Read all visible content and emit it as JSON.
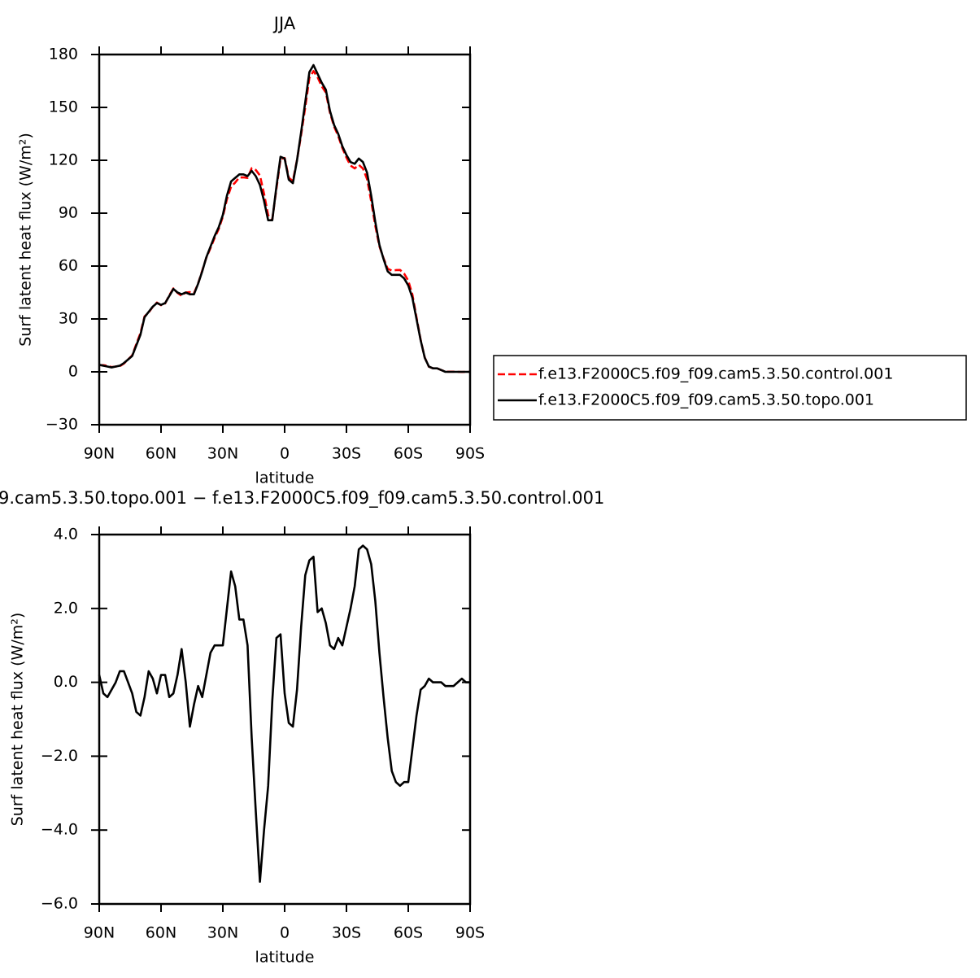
{
  "chart_data": [
    {
      "type": "line",
      "title": "JJA",
      "xlabel": "latitude",
      "ylabel": "Surf latent heat flux (W/m²)",
      "x": [
        90,
        88,
        86,
        84,
        82,
        80,
        78,
        76,
        74,
        72,
        70,
        68,
        66,
        64,
        62,
        60,
        58,
        56,
        54,
        52,
        50,
        48,
        46,
        44,
        42,
        40,
        38,
        36,
        34,
        32,
        30,
        28,
        26,
        24,
        22,
        20,
        18,
        16,
        14,
        12,
        10,
        8,
        6,
        4,
        2,
        0,
        -2,
        -4,
        -6,
        -8,
        -10,
        -12,
        -14,
        -16,
        -18,
        -20,
        -22,
        -24,
        -26,
        -28,
        -30,
        -32,
        -34,
        -36,
        -38,
        -40,
        -42,
        -44,
        -46,
        -48,
        -50,
        -52,
        -54,
        -56,
        -58,
        -60,
        -62,
        -64,
        -66,
        -68,
        -70,
        -72,
        -74,
        -76,
        -78,
        -80,
        -82,
        -84,
        -86,
        -88,
        -90
      ],
      "series": [
        {
          "name": "f.e13.F2000C5.f09_f09.cam5.3.50.control.001",
          "color": "#ff0000",
          "linestyle": "dashed",
          "values": [
            3.8,
            3.8,
            3.4,
            2.7,
            3,
            3.2,
            4.7,
            7,
            9.3,
            15.8,
            21.9,
            31.4,
            33.7,
            36.9,
            39.3,
            37.8,
            38.8,
            43.4,
            47.3,
            44.8,
            43.1,
            45,
            45.2,
            44.6,
            50.1,
            57.4,
            64.8,
            70.2,
            76,
            81,
            88,
            98,
            105,
            107.4,
            110.3,
            110.3,
            110,
            115.5,
            114.5,
            111.4,
            101,
            88.8,
            86.5,
            103.8,
            120.7,
            121.3,
            110.1,
            108.2,
            120.2,
            134.5,
            150.1,
            166.7,
            170.6,
            167.1,
            162,
            158.4,
            147,
            139.1,
            133.8,
            127,
            121.5,
            117,
            115.4,
            117.4,
            115.3,
            109.4,
            96.8,
            82.8,
            71.2,
            64.4,
            58.5,
            57.4,
            57.7,
            57.8,
            55.7,
            51.7,
            43.8,
            30.9,
            18.2,
            8.1,
            2.9,
            2,
            2,
            1,
            0.1,
            0.1,
            0.1,
            0,
            -0.1,
            0,
            0
          ]
        },
        {
          "name": "f.e13.F2000C5.f09_f09.cam5.3.50.topo.001",
          "color": "#000000",
          "linestyle": "solid",
          "values": [
            4,
            3.5,
            3,
            2.5,
            3,
            3.5,
            5,
            7,
            9,
            15,
            21,
            31,
            34,
            37,
            39,
            38,
            39,
            43,
            47,
            45,
            44,
            45,
            44,
            44,
            50,
            57,
            65,
            71,
            77,
            82,
            89,
            100,
            108,
            110,
            112,
            112,
            111,
            114,
            111,
            106,
            97,
            86,
            86,
            105,
            122,
            121,
            109,
            107,
            120,
            136,
            153,
            170,
            174,
            169,
            164,
            160,
            148,
            140,
            135,
            128,
            123,
            119,
            118,
            121,
            119,
            113,
            100,
            85,
            72,
            64,
            57,
            55,
            55,
            55,
            53,
            49,
            42,
            30,
            18,
            8,
            3,
            2,
            2,
            1,
            0,
            0,
            0,
            0,
            0,
            0,
            0
          ]
        }
      ],
      "xlim": [
        90,
        -90
      ],
      "xticks": [
        {
          "value": 90,
          "label": "90N"
        },
        {
          "value": 60,
          "label": "60N"
        },
        {
          "value": 30,
          "label": "30N"
        },
        0,
        {
          "value": -30,
          "label": "30S"
        },
        {
          "value": -60,
          "label": "60S"
        },
        {
          "value": -90,
          "label": "90S"
        }
      ],
      "ylim": [
        -30,
        180
      ],
      "yticks": [
        {
          "value": -30,
          "label": "−30"
        },
        0,
        30,
        60,
        90,
        120,
        150,
        180
      ],
      "legend": "right"
    },
    {
      "type": "line",
      "title": "9.cam5.3.50.topo.001 − f.e13.F2000C5.f09_f09.cam5.3.50.control.001",
      "xlabel": "latitude",
      "ylabel": "Surf latent heat flux (W/m²)",
      "x": [
        90,
        88,
        86,
        84,
        82,
        80,
        78,
        76,
        74,
        72,
        70,
        68,
        66,
        64,
        62,
        60,
        58,
        56,
        54,
        52,
        50,
        48,
        46,
        44,
        42,
        40,
        38,
        36,
        34,
        32,
        30,
        28,
        26,
        24,
        22,
        20,
        18,
        16,
        14,
        12,
        10,
        8,
        6,
        4,
        2,
        0,
        -2,
        -4,
        -6,
        -8,
        -10,
        -12,
        -14,
        -16,
        -18,
        -20,
        -22,
        -24,
        -26,
        -28,
        -30,
        -32,
        -34,
        -36,
        -38,
        -40,
        -42,
        -44,
        -46,
        -48,
        -50,
        -52,
        -54,
        -56,
        -58,
        -60,
        -62,
        -64,
        -66,
        -68,
        -70,
        -72,
        -74,
        -76,
        -78,
        -80,
        -82,
        -84,
        -86,
        -88,
        -90
      ],
      "series": [
        {
          "color": "#000000",
          "linestyle": "solid",
          "values": [
            0.2,
            -0.3,
            -0.4,
            -0.2,
            0,
            0.3,
            0.3,
            0,
            -0.3,
            -0.8,
            -0.9,
            -0.4,
            0.3,
            0.1,
            -0.3,
            0.2,
            0.2,
            -0.4,
            -0.3,
            0.2,
            0.9,
            0,
            -1.2,
            -0.6,
            -0.1,
            -0.4,
            0.2,
            0.8,
            1,
            1,
            1,
            2,
            3,
            2.6,
            1.7,
            1.7,
            1,
            -1.5,
            -3.5,
            -5.4,
            -4,
            -2.8,
            -0.5,
            1.2,
            1.3,
            -0.3,
            -1.1,
            -1.2,
            -0.2,
            1.5,
            2.9,
            3.3,
            3.4,
            1.9,
            2,
            1.6,
            1,
            0.9,
            1.2,
            1,
            1.5,
            2,
            2.6,
            3.6,
            3.7,
            3.6,
            3.2,
            2.2,
            0.8,
            -0.4,
            -1.5,
            -2.4,
            -2.7,
            -2.8,
            -2.7,
            -2.7,
            -1.8,
            -0.9,
            -0.2,
            -0.1,
            0.1,
            0,
            0,
            0,
            -0.1,
            -0.1,
            -0.1,
            0,
            0.1,
            0,
            0
          ]
        }
      ],
      "xlim": [
        90,
        -90
      ],
      "xticks": [
        {
          "value": 90,
          "label": "90N"
        },
        {
          "value": 60,
          "label": "60N"
        },
        {
          "value": 30,
          "label": "30N"
        },
        0,
        {
          "value": -30,
          "label": "30S"
        },
        {
          "value": -60,
          "label": "60S"
        },
        {
          "value": -90,
          "label": "90S"
        }
      ],
      "ylim": [
        -6,
        4
      ],
      "yticks": [
        {
          "value": -6,
          "label": "−6.0"
        },
        {
          "value": -4,
          "label": "−4.0"
        },
        {
          "value": -2,
          "label": "−2.0"
        },
        {
          "value": 0,
          "label": "0.0"
        },
        {
          "value": 2,
          "label": "2.0"
        },
        {
          "value": 4,
          "label": "4.0"
        }
      ]
    }
  ]
}
